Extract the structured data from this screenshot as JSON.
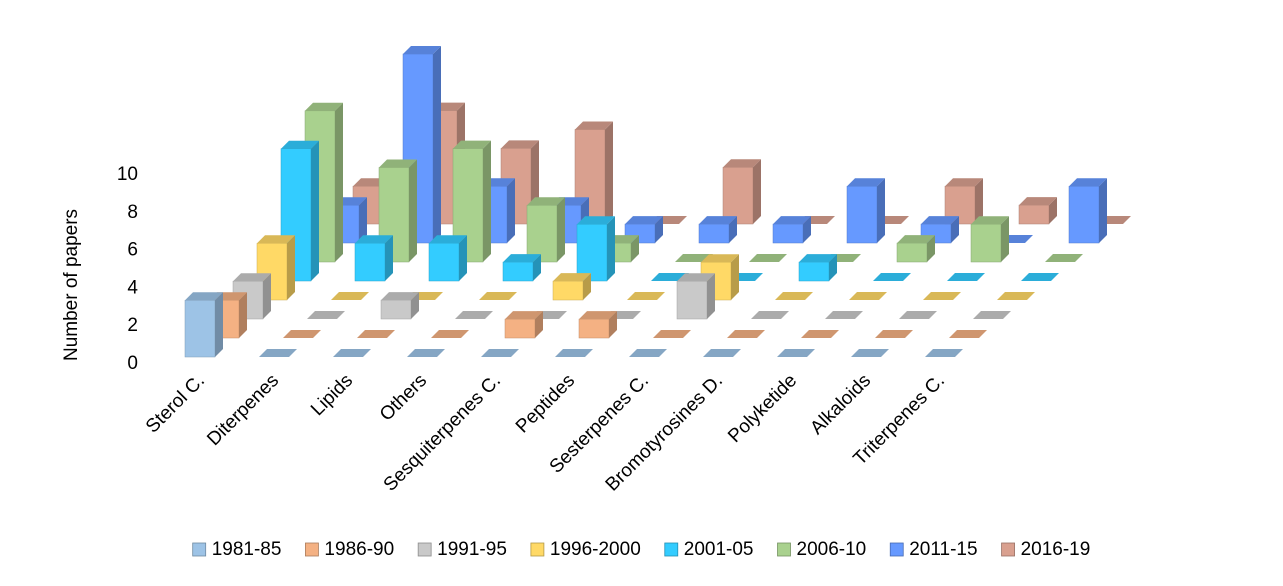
{
  "chart_data": {
    "type": "bar3d",
    "y_label": "Number of papers",
    "categories": [
      "Sterol C.",
      "Diterpenes",
      "Lipids",
      "Others",
      "Sesquiterpenes C.",
      "Peptides",
      "Sesterpenes C.",
      "Bromotyrosines D.",
      "Polyketide",
      "Alkaloids",
      "Triterpenes C."
    ],
    "series": [
      {
        "name": "1981-85",
        "color": "#9dc3e6",
        "values": [
          3,
          0,
          0,
          0,
          0,
          0,
          0,
          0,
          0,
          0,
          0
        ]
      },
      {
        "name": "1986-90",
        "color": "#f4b183",
        "values": [
          2,
          0,
          0,
          0,
          1,
          1,
          0,
          0,
          0,
          0,
          0
        ]
      },
      {
        "name": "1991-95",
        "color": "#c9c9c9",
        "values": [
          2,
          0,
          1,
          0,
          0,
          0,
          2,
          0,
          0,
          0,
          0
        ]
      },
      {
        "name": "1996-2000",
        "color": "#ffd966",
        "values": [
          3,
          0,
          0,
          0,
          1,
          0,
          2,
          0,
          0,
          0,
          0
        ]
      },
      {
        "name": "2001-05",
        "color": "#33ccff",
        "values": [
          7,
          2,
          2,
          1,
          3,
          0,
          0,
          1,
          0,
          0,
          0
        ]
      },
      {
        "name": "2006-10",
        "color": "#a9d18e",
        "values": [
          8,
          5,
          6,
          3,
          1,
          0,
          0,
          0,
          1,
          2,
          0
        ]
      },
      {
        "name": "2011-15",
        "color": "#6699ff",
        "values": [
          2,
          10,
          3,
          2,
          1,
          1,
          1,
          3,
          1,
          0,
          3
        ]
      },
      {
        "name": "2016-19",
        "color": "#d9a08f",
        "values": [
          2,
          6,
          4,
          5,
          0,
          3,
          0,
          0,
          2,
          1,
          0
        ]
      }
    ],
    "ylim": [
      0,
      10
    ],
    "yticks": [
      0,
      2,
      4,
      6,
      8,
      10
    ],
    "legend": "bottom"
  }
}
